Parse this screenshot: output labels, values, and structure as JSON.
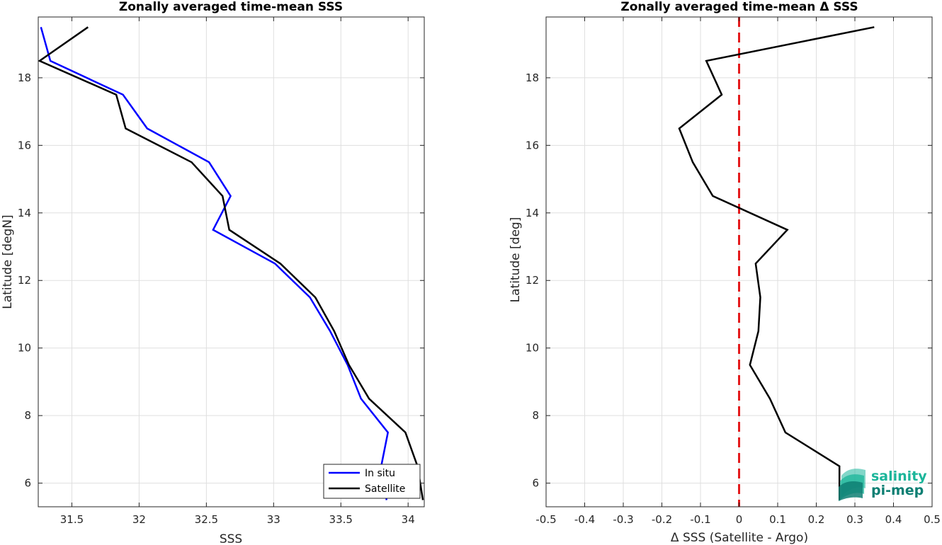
{
  "chart_data": [
    {
      "type": "line",
      "title": "Zonally averaged time-mean SSS",
      "xlabel": "SSS",
      "ylabel": "Latitude [degN]",
      "xlim": [
        31.25,
        34.12
      ],
      "ylim": [
        5.3,
        19.8
      ],
      "xticks": [
        "31.5",
        "32",
        "32.5",
        "33",
        "33.5",
        "34"
      ],
      "yticks": [
        "6",
        "8",
        "10",
        "12",
        "14",
        "16",
        "18"
      ],
      "grid": true,
      "legend_position": "bottom-right",
      "series": [
        {
          "name": "In situ",
          "color": "#0000ff",
          "points": [
            [
              31.27,
              19.5
            ],
            [
              31.34,
              18.5
            ],
            [
              31.88,
              17.5
            ],
            [
              32.06,
              16.5
            ],
            [
              32.52,
              15.5
            ],
            [
              32.68,
              14.5
            ],
            [
              32.55,
              13.5
            ],
            [
              33.01,
              12.5
            ],
            [
              33.27,
              11.5
            ],
            [
              33.42,
              10.5
            ],
            [
              33.55,
              9.5
            ],
            [
              33.65,
              8.5
            ],
            [
              33.85,
              7.5
            ],
            [
              33.8,
              6.5
            ],
            [
              33.84,
              5.5
            ]
          ]
        },
        {
          "name": "Satellite",
          "color": "#000000",
          "points": [
            [
              31.62,
              19.5
            ],
            [
              31.26,
              18.5
            ],
            [
              31.83,
              17.5
            ],
            [
              31.9,
              16.5
            ],
            [
              32.39,
              15.5
            ],
            [
              32.62,
              14.5
            ],
            [
              32.67,
              13.5
            ],
            [
              33.05,
              12.5
            ],
            [
              33.31,
              11.5
            ],
            [
              33.45,
              10.5
            ],
            [
              33.56,
              9.5
            ],
            [
              33.71,
              8.5
            ],
            [
              33.98,
              7.5
            ],
            [
              34.07,
              6.5
            ],
            [
              34.11,
              5.5
            ]
          ]
        }
      ]
    },
    {
      "type": "line",
      "title": "Zonally averaged time-mean Δ SSS",
      "xlabel": "Δ SSS (Satellite - Argo)",
      "ylabel": "Latitude [deg]",
      "xlim": [
        -0.5,
        0.5
      ],
      "ylim": [
        5.3,
        19.8
      ],
      "xticks": [
        "-0.5",
        "-0.4",
        "-0.3",
        "-0.2",
        "-0.1",
        "0",
        "0.1",
        "0.2",
        "0.3",
        "0.4",
        "0.5"
      ],
      "yticks": [
        "6",
        "8",
        "10",
        "12",
        "14",
        "16",
        "18"
      ],
      "grid": true,
      "reference_line": {
        "x": 0,
        "color": "#e41a1c",
        "style": "dashed"
      },
      "series": [
        {
          "color": "#000000",
          "points": [
            [
              0.35,
              19.5
            ],
            [
              -0.085,
              18.5
            ],
            [
              -0.045,
              17.5
            ],
            [
              -0.155,
              16.5
            ],
            [
              -0.12,
              15.5
            ],
            [
              -0.068,
              14.5
            ],
            [
              0.125,
              13.5
            ],
            [
              0.043,
              12.5
            ],
            [
              0.055,
              11.5
            ],
            [
              0.05,
              10.5
            ],
            [
              0.028,
              9.5
            ],
            [
              0.08,
              8.5
            ],
            [
              0.12,
              7.5
            ],
            [
              0.26,
              6.5
            ],
            [
              0.26,
              5.5
            ]
          ]
        }
      ]
    }
  ],
  "logo": {
    "line1": "salinity",
    "line2": "pi-mep",
    "color": "#1bb59a",
    "color_dark": "#0e7f73"
  }
}
